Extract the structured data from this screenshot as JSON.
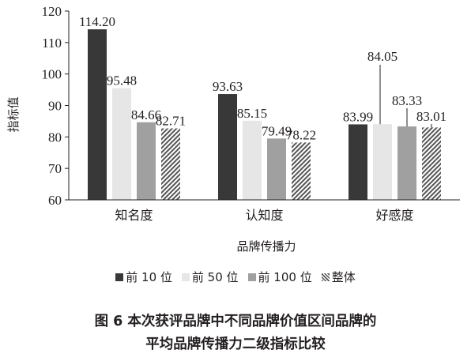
{
  "chart_data": {
    "type": "bar",
    "categories": [
      "知名度",
      "认知度",
      "好感度"
    ],
    "series": [
      {
        "name": "前 10 位",
        "values": [
          114.2,
          93.63,
          83.99
        ],
        "color": "#383838",
        "pattern": "solid"
      },
      {
        "name": "前 50 位",
        "values": [
          95.48,
          85.15,
          84.05
        ],
        "color": "#e6e6e6",
        "pattern": "solid"
      },
      {
        "name": "前 100 位",
        "values": [
          84.66,
          79.49,
          83.33
        ],
        "color": "#a0a0a0",
        "pattern": "solid"
      },
      {
        "name": "整体",
        "values": [
          82.71,
          78.22,
          83.01
        ],
        "color": "#555555",
        "pattern": "hatch"
      }
    ],
    "value_labels": [
      [
        "114.20",
        "93.63",
        "83.99"
      ],
      [
        "95.48",
        "85.15",
        "84.05"
      ],
      [
        "84.66",
        "79.49",
        "83.33"
      ],
      [
        "82.71",
        "78.22",
        "83.01"
      ]
    ],
    "xlabel": "品牌传播力",
    "ylabel": "指标值",
    "ylim": [
      60,
      120
    ],
    "yticks": [
      60,
      70,
      80,
      90,
      100,
      110,
      120
    ],
    "legend_position": "bottom",
    "grid": false
  },
  "caption": {
    "line1": "图 6  本次获评品牌中不同品牌价值区间品牌的",
    "line2": "平均品牌传播力二级指标比较"
  }
}
